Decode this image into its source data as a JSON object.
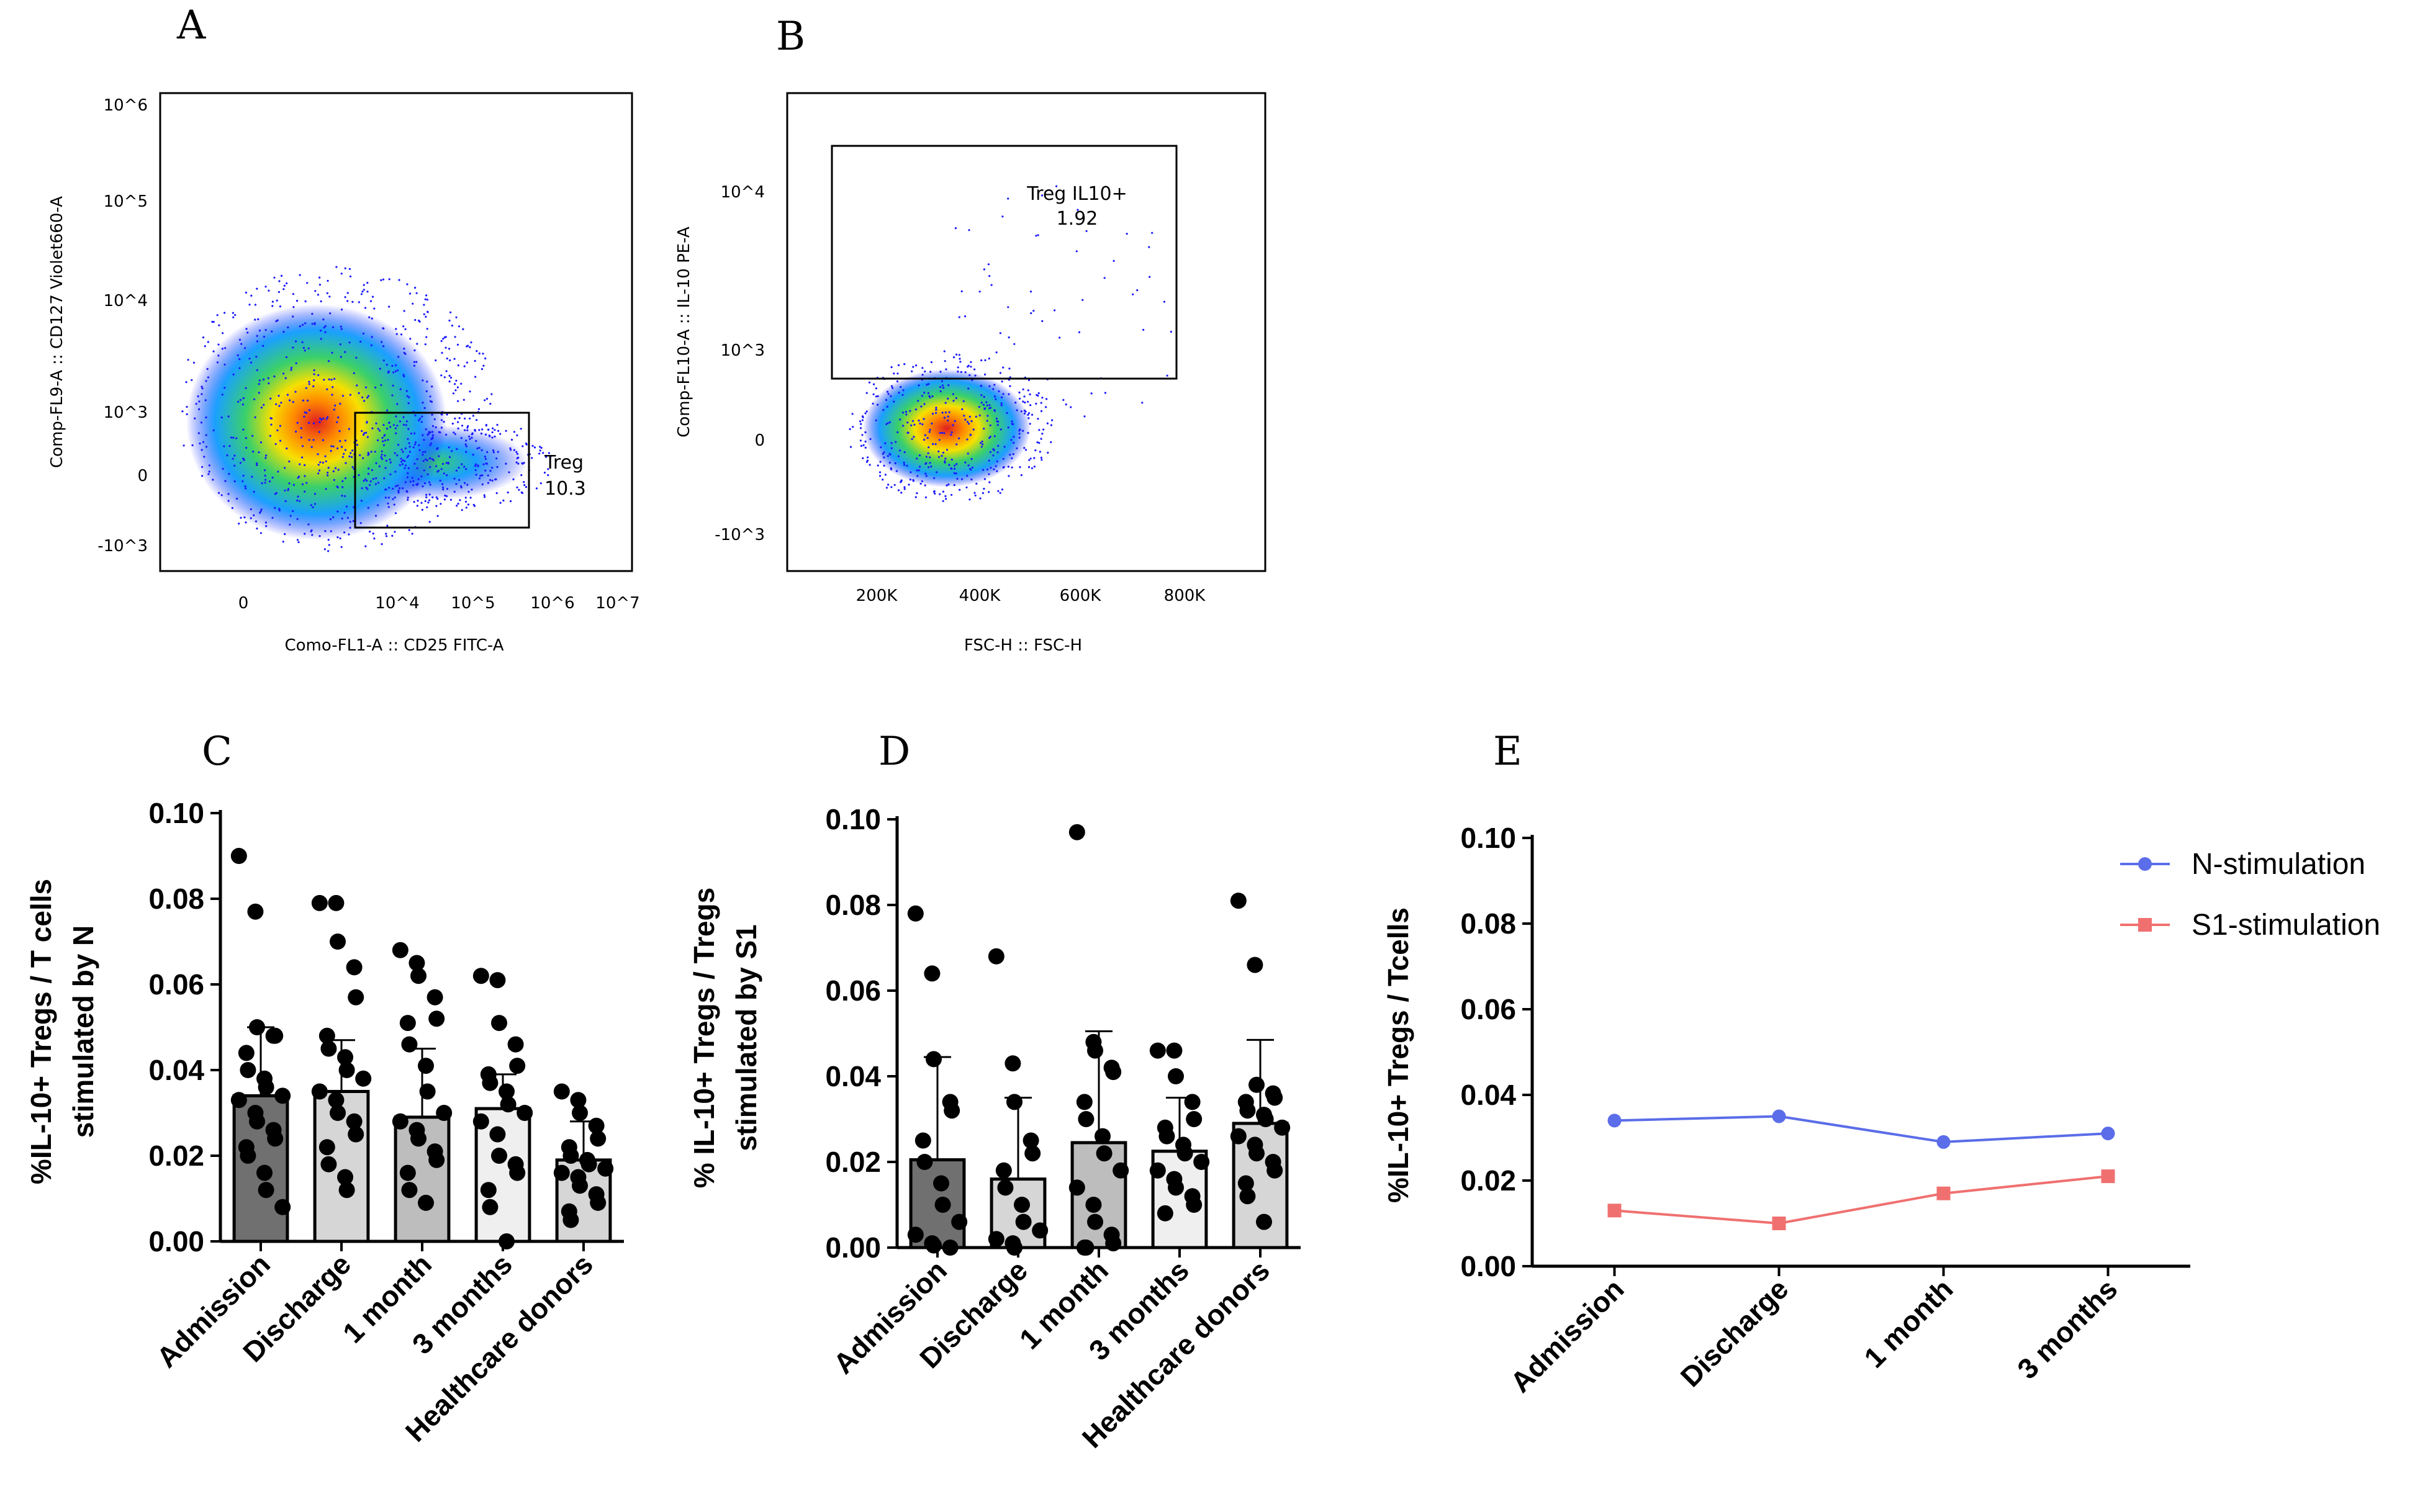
{
  "panels": {
    "A": "A",
    "B": "B",
    "C": "C",
    "D": "D",
    "E": "E"
  },
  "colors": {
    "n_stim": "#5b6de8",
    "s1_stim": "#f07070",
    "density_low": "#1a1aff",
    "density_high": "#e02020"
  },
  "flowA": {
    "xlabel": "Como-FL1-A :: CD25 FITC-A",
    "ylabel": "Comp-FL9-A :: CD127 Violet660-A",
    "xticks": [
      "0",
      "10^4",
      "10^5",
      "10^6",
      "10^7"
    ],
    "yticks": [
      "10^6",
      "10^5",
      "10^4",
      "10^3",
      "0",
      "-10^3"
    ],
    "gate_name": "Treg",
    "gate_value": "10.3"
  },
  "flowB": {
    "xlabel": "FSC-H :: FSC-H",
    "ylabel": "Comp-FL10-A :: IL-10 PE-A",
    "xticks": [
      "200K",
      "400K",
      "600K",
      "800K"
    ],
    "yticks": [
      "10^4",
      "10^3",
      "0",
      "-10^3"
    ],
    "gate_name": "Treg IL10+",
    "gate_value": "1.92"
  },
  "chart_data": [
    {
      "id": "C",
      "type": "bar",
      "ylabel_line1": "%IL-10+ Tregs / T cells",
      "ylabel_line2": "stimulated by N",
      "ylim": [
        0,
        0.1
      ],
      "yticks": [
        "0.00",
        "0.02",
        "0.04",
        "0.06",
        "0.08",
        "0.10"
      ],
      "categories": [
        "Admission",
        "Discharge",
        "1 month",
        "3 months",
        "Healthcare donors"
      ],
      "means": [
        0.034,
        0.035,
        0.029,
        0.031,
        0.019
      ],
      "sd": [
        0.016,
        0.012,
        0.016,
        0.008,
        0.009
      ],
      "bar_colors": [
        "#707070",
        "#d6d6d6",
        "#bdbdbd",
        "#efefef",
        "#d6d6d6"
      ],
      "points": [
        [
          0.09,
          0.077,
          0.05,
          0.048,
          0.048,
          0.044,
          0.04,
          0.038,
          0.036,
          0.034,
          0.033,
          0.03,
          0.028,
          0.026,
          0.024,
          0.022,
          0.02,
          0.016,
          0.012,
          0.008
        ],
        [
          0.079,
          0.079,
          0.07,
          0.064,
          0.057,
          0.048,
          0.045,
          0.043,
          0.04,
          0.038,
          0.035,
          0.033,
          0.03,
          0.028,
          0.025,
          0.022,
          0.018,
          0.015,
          0.012
        ],
        [
          0.068,
          0.065,
          0.062,
          0.057,
          0.052,
          0.051,
          0.046,
          0.041,
          0.035,
          0.03,
          0.028,
          0.026,
          0.024,
          0.021,
          0.019,
          0.016,
          0.012,
          0.009
        ],
        [
          0.062,
          0.061,
          0.051,
          0.046,
          0.041,
          0.039,
          0.037,
          0.035,
          0.032,
          0.03,
          0.028,
          0.025,
          0.02,
          0.018,
          0.016,
          0.012,
          0.008,
          0.0
        ],
        [
          0.035,
          0.033,
          0.03,
          0.027,
          0.024,
          0.022,
          0.02,
          0.019,
          0.018,
          0.017,
          0.016,
          0.015,
          0.013,
          0.011,
          0.009,
          0.007,
          0.005
        ]
      ]
    },
    {
      "id": "D",
      "type": "bar",
      "ylabel_line1": "% IL-10+ Tregs / Tregs",
      "ylabel_line2": "stimulated by S1",
      "ylim": [
        0,
        0.1
      ],
      "yticks": [
        "0.00",
        "0.02",
        "0.04",
        "0.06",
        "0.08",
        "0.10"
      ],
      "categories": [
        "Admission",
        "Discharge",
        "1 month",
        "3 months",
        "Healthcare donors"
      ],
      "means": [
        0.0205,
        0.016,
        0.0245,
        0.0225,
        0.029
      ],
      "sd": [
        0.024,
        0.019,
        0.026,
        0.0125,
        0.0195
      ],
      "bar_colors": [
        "#707070",
        "#d6d6d6",
        "#bdbdbd",
        "#efefef",
        "#d6d6d6"
      ],
      "points": [
        [
          0.078,
          0.064,
          0.044,
          0.034,
          0.032,
          0.025,
          0.02,
          0.015,
          0.01,
          0.006,
          0.003,
          0.001,
          0.0005,
          0.0
        ],
        [
          0.068,
          0.043,
          0.034,
          0.025,
          0.022,
          0.018,
          0.014,
          0.01,
          0.006,
          0.004,
          0.002,
          0.001,
          0.0
        ],
        [
          0.097,
          0.048,
          0.046,
          0.042,
          0.041,
          0.034,
          0.03,
          0.026,
          0.022,
          0.018,
          0.014,
          0.01,
          0.006,
          0.003,
          0.001,
          0.0,
          0.0
        ],
        [
          0.046,
          0.046,
          0.04,
          0.034,
          0.03,
          0.028,
          0.026,
          0.024,
          0.022,
          0.02,
          0.018,
          0.016,
          0.014,
          0.012,
          0.01,
          0.008
        ],
        [
          0.081,
          0.066,
          0.038,
          0.036,
          0.035,
          0.034,
          0.032,
          0.031,
          0.03,
          0.028,
          0.026,
          0.024,
          0.022,
          0.02,
          0.018,
          0.015,
          0.012,
          0.006
        ]
      ]
    },
    {
      "id": "E",
      "type": "line",
      "ylabel": "%IL-10+ Tregs / Tcells",
      "ylim": [
        0,
        0.1
      ],
      "yticks": [
        "0.00",
        "0.02",
        "0.04",
        "0.06",
        "0.08",
        "0.10"
      ],
      "categories": [
        "Admission",
        "Discharge",
        "1 month",
        "3 months"
      ],
      "series": [
        {
          "name": "N-stimulation",
          "values": [
            0.034,
            0.035,
            0.029,
            0.031
          ],
          "marker": "circle"
        },
        {
          "name": "S1-stimulation",
          "values": [
            0.013,
            0.01,
            0.017,
            0.021
          ],
          "marker": "square"
        }
      ],
      "legend": "top-right"
    }
  ]
}
